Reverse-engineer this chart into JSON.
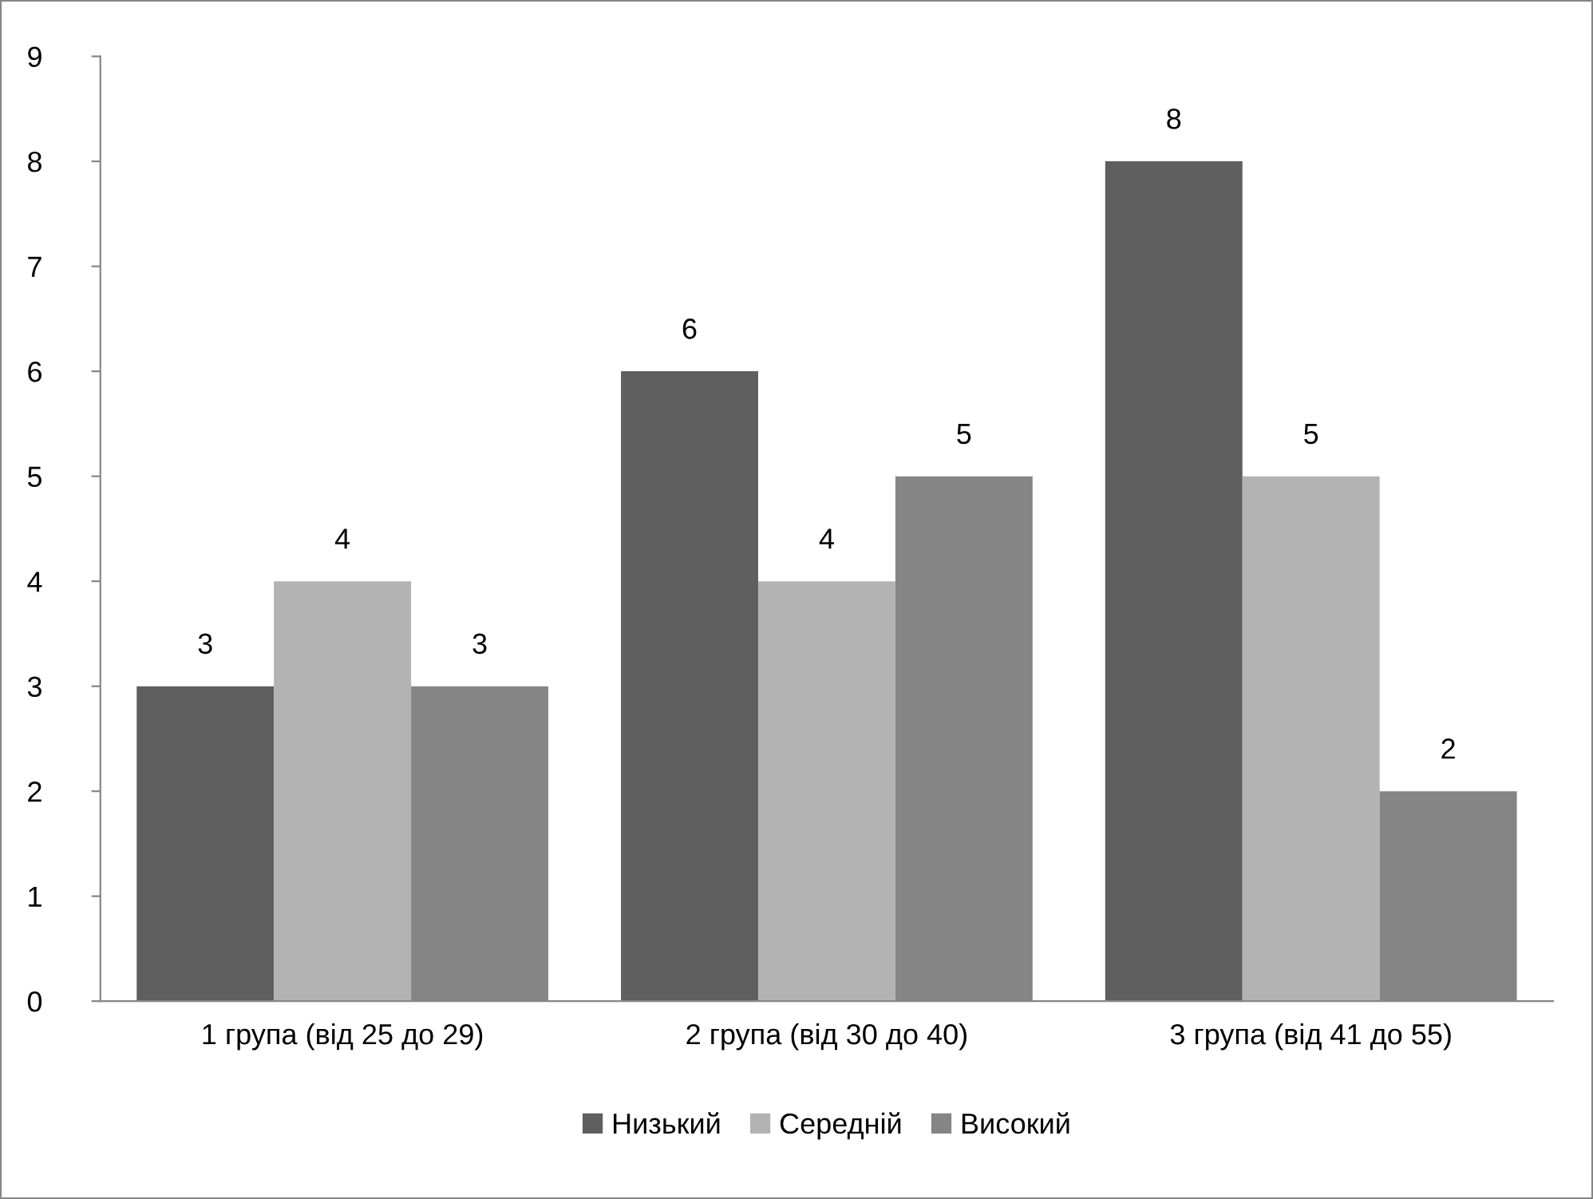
{
  "chart_data": {
    "type": "bar",
    "categories": [
      "1 група (від 25 до 29)",
      "2 група (від 30 до 40)",
      "3 група (від 41 до 55)"
    ],
    "series": [
      {
        "name": "Низький",
        "color": "#5f5f5f",
        "values": [
          3,
          6,
          8
        ]
      },
      {
        "name": "Середній",
        "color": "#b3b3b3",
        "values": [
          4,
          4,
          5
        ]
      },
      {
        "name": "Високий",
        "color": "#858585",
        "values": [
          3,
          5,
          2
        ]
      }
    ],
    "ylim": [
      0,
      9
    ],
    "yticks": [
      0,
      1,
      2,
      3,
      4,
      5,
      6,
      7,
      8,
      9
    ],
    "grid": false,
    "legend": "bottom",
    "data_labels": true
  }
}
